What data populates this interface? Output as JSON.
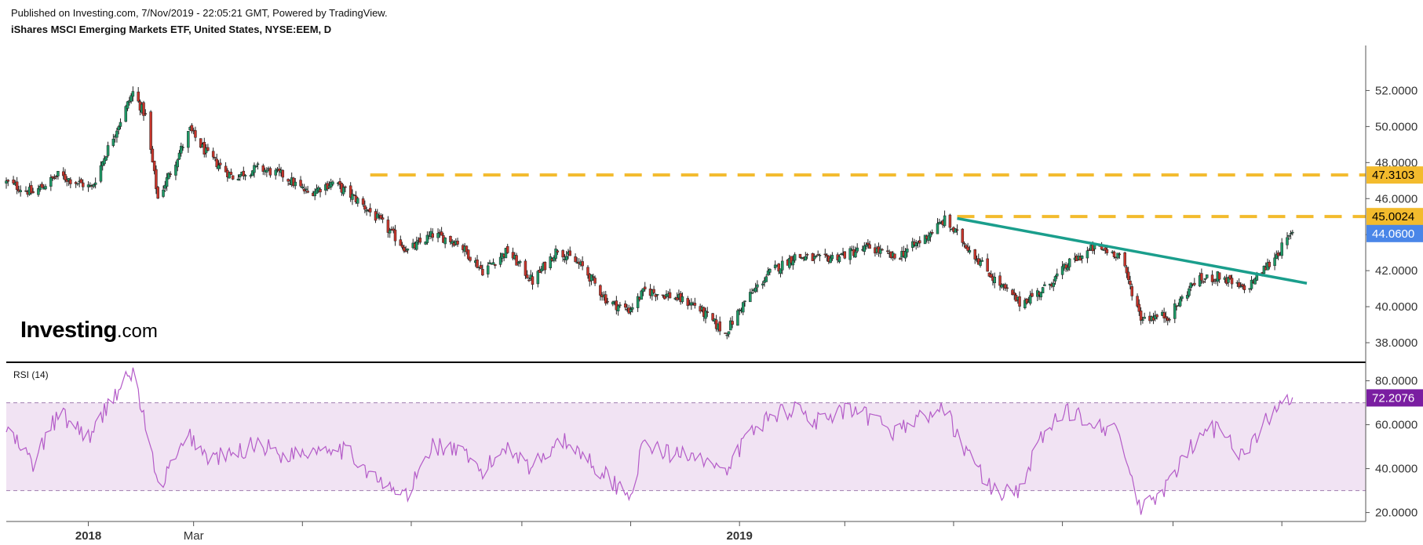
{
  "header": {
    "published": "Published on Investing.com, 7/Nov/2019 - 22:05:21 GMT, Powered by TradingView.",
    "title": "iShares MSCI Emerging Markets ETF, United States, NYSE:EEM, D"
  },
  "logo": {
    "brand": "Investing",
    "suffix": ".com"
  },
  "colors": {
    "up": "#1e9a67",
    "down": "#c8352b",
    "trendline": "#1a9e8c",
    "resistance": "#f3bb2d",
    "last_price": "#4a86e8",
    "rsi_line": "#b45bc8",
    "rsi_band": "#f1e3f3",
    "rsi_badge": "#7a1ea1"
  },
  "chart_data": [
    {
      "type": "candlestick",
      "title": "iShares MSCI Emerging Markets ETF, United States, NYSE:EEM, D",
      "ylim": [
        37,
        54.5
      ],
      "yticks": [
        "52.0000",
        "50.0000",
        "48.0000",
        "46.0000",
        "44.0000",
        "42.0000",
        "40.0000",
        "38.0000"
      ],
      "ytick_values": [
        52,
        50,
        48,
        46,
        44,
        42,
        40,
        38
      ],
      "x_labels": [
        {
          "label": "2018",
          "date": "2018-01",
          "bold": true
        },
        {
          "label": "Mar",
          "date": "2018-03",
          "bold": false
        },
        {
          "label": "2019",
          "date": "2019-01",
          "bold": true
        }
      ],
      "close_path": [
        [
          "2017-11-16",
          46.9
        ],
        [
          "2017-12-01",
          46.3
        ],
        [
          "2017-12-15",
          47.3
        ],
        [
          "2018-01-03",
          46.6
        ],
        [
          "2018-01-12",
          48.8
        ],
        [
          "2018-01-26",
          51.9
        ],
        [
          "2018-02-02",
          50.6
        ],
        [
          "2018-02-09",
          46.0
        ],
        [
          "2018-02-27",
          49.8
        ],
        [
          "2018-03-09",
          48.4
        ],
        [
          "2018-03-23",
          47.2
        ],
        [
          "2018-04-06",
          47.7
        ],
        [
          "2018-04-20",
          47.3
        ],
        [
          "2018-05-04",
          46.3
        ],
        [
          "2018-05-18",
          46.9
        ],
        [
          "2018-06-01",
          45.9
        ],
        [
          "2018-06-15",
          44.6
        ],
        [
          "2018-06-29",
          43.1
        ],
        [
          "2018-07-13",
          44.0
        ],
        [
          "2018-07-27",
          43.6
        ],
        [
          "2018-08-10",
          42.0
        ],
        [
          "2018-08-24",
          43.1
        ],
        [
          "2018-09-07",
          41.4
        ],
        [
          "2018-09-21",
          43.2
        ],
        [
          "2018-10-05",
          42.2
        ],
        [
          "2018-10-19",
          40.3
        ],
        [
          "2018-10-31",
          39.8
        ],
        [
          "2018-11-09",
          40.9
        ],
        [
          "2018-11-23",
          40.6
        ],
        [
          "2018-12-07",
          40.1
        ],
        [
          "2018-12-24",
          38.5
        ],
        [
          "2019-01-04",
          40.3
        ],
        [
          "2019-01-18",
          41.9
        ],
        [
          "2019-02-01",
          42.8
        ],
        [
          "2019-02-15",
          42.6
        ],
        [
          "2019-03-01",
          42.9
        ],
        [
          "2019-03-15",
          43.3
        ],
        [
          "2019-03-29",
          42.7
        ],
        [
          "2019-04-12",
          43.6
        ],
        [
          "2019-04-26",
          44.8
        ],
        [
          "2019-05-10",
          43.2
        ],
        [
          "2019-05-24",
          41.5
        ],
        [
          "2019-06-07",
          40.2
        ],
        [
          "2019-06-21",
          41.0
        ],
        [
          "2019-07-05",
          42.4
        ],
        [
          "2019-07-19",
          43.3
        ],
        [
          "2019-08-02",
          42.9
        ],
        [
          "2019-08-14",
          39.4
        ],
        [
          "2019-08-30",
          39.5
        ],
        [
          "2019-09-13",
          41.4
        ],
        [
          "2019-09-27",
          41.7
        ],
        [
          "2019-10-11",
          40.9
        ],
        [
          "2019-10-25",
          42.4
        ],
        [
          "2019-11-07",
          44.06
        ]
      ],
      "annotations": {
        "resistance_levels": [
          47.3103,
          45.0024
        ],
        "resistance_labels": [
          "47.3103",
          "45.0024"
        ],
        "resistance_start": [
          "2018-06-08",
          "2019-05-03"
        ],
        "trendline": [
          [
            "2019-05-03",
            44.9
          ],
          [
            "2019-11-15",
            41.3
          ]
        ],
        "last_price": 44.06,
        "last_price_label": "44.0600"
      }
    },
    {
      "type": "line",
      "title": "RSI (14)",
      "ylim": [
        17,
        87
      ],
      "yticks": [
        "80.0000",
        "60.0000",
        "40.0000",
        "20.0000"
      ],
      "ytick_values": [
        80,
        60,
        40,
        20
      ],
      "overbought": 70,
      "oversold": 30,
      "last_value": 72.2076,
      "last_value_label": "72.2076",
      "rsi_path": [
        [
          "2017-11-16",
          58
        ],
        [
          "2017-12-01",
          42
        ],
        [
          "2017-12-15",
          65
        ],
        [
          "2018-01-03",
          54
        ],
        [
          "2018-01-12",
          70
        ],
        [
          "2018-01-26",
          84
        ],
        [
          "2018-02-02",
          60
        ],
        [
          "2018-02-09",
          31
        ],
        [
          "2018-02-27",
          55
        ],
        [
          "2018-03-09",
          45
        ],
        [
          "2018-03-23",
          46
        ],
        [
          "2018-04-06",
          52
        ],
        [
          "2018-04-20",
          46
        ],
        [
          "2018-05-04",
          48
        ],
        [
          "2018-05-18",
          51
        ],
        [
          "2018-06-01",
          44
        ],
        [
          "2018-06-15",
          32
        ],
        [
          "2018-06-29",
          28
        ],
        [
          "2018-07-13",
          51
        ],
        [
          "2018-07-27",
          48
        ],
        [
          "2018-08-10",
          38
        ],
        [
          "2018-08-24",
          51
        ],
        [
          "2018-09-07",
          40
        ],
        [
          "2018-09-21",
          54
        ],
        [
          "2018-10-05",
          47
        ],
        [
          "2018-10-19",
          36
        ],
        [
          "2018-10-31",
          28
        ],
        [
          "2018-11-09",
          52
        ],
        [
          "2018-11-23",
          46
        ],
        [
          "2018-12-07",
          48
        ],
        [
          "2018-12-24",
          36
        ],
        [
          "2019-01-04",
          54
        ],
        [
          "2019-01-18",
          64
        ],
        [
          "2019-02-01",
          68
        ],
        [
          "2019-02-15",
          61
        ],
        [
          "2019-03-01",
          66
        ],
        [
          "2019-03-15",
          63
        ],
        [
          "2019-03-29",
          57
        ],
        [
          "2019-04-12",
          63
        ],
        [
          "2019-04-26",
          67
        ],
        [
          "2019-05-10",
          45
        ],
        [
          "2019-05-24",
          29
        ],
        [
          "2019-06-07",
          31
        ],
        [
          "2019-06-21",
          57
        ],
        [
          "2019-07-05",
          66
        ],
        [
          "2019-07-19",
          62
        ],
        [
          "2019-08-02",
          55
        ],
        [
          "2019-08-14",
          20
        ],
        [
          "2019-08-30",
          33
        ],
        [
          "2019-09-13",
          52
        ],
        [
          "2019-09-27",
          60
        ],
        [
          "2019-10-11",
          45
        ],
        [
          "2019-10-25",
          64
        ],
        [
          "2019-11-07",
          72.2
        ]
      ]
    }
  ]
}
